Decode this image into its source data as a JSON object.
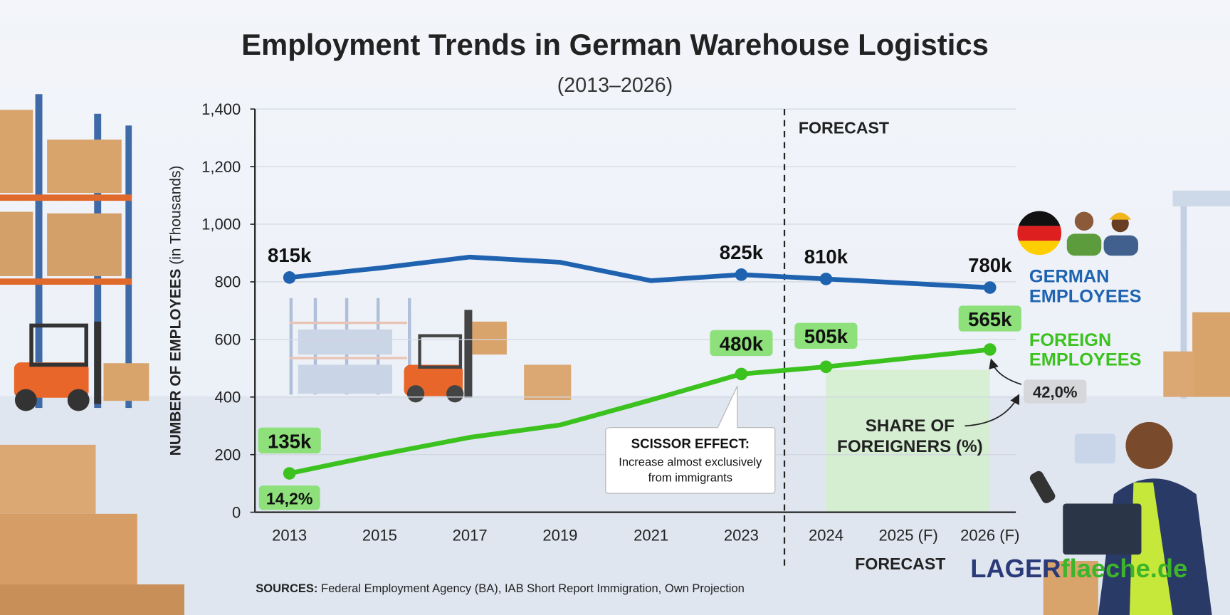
{
  "title": "Employment Trends in German Warehouse Logistics",
  "subtitle": "(2013–2026)",
  "chart_data": {
    "type": "line",
    "title": "Employment Trends in German Warehouse Logistics",
    "subtitle": "(2013–2026)",
    "xlabel": "",
    "ylabel_bold": "NUMBER OF EMPLOYEES",
    "ylabel_rest": " (in Thousands)",
    "ylim": [
      0,
      1400
    ],
    "yticks": [
      0,
      200,
      400,
      600,
      800,
      1000,
      1200,
      1400
    ],
    "ytick_labels": [
      "0",
      "200",
      "400",
      "600",
      "800",
      "1,000",
      "1,200",
      "1,400"
    ],
    "categories": [
      "2013",
      "2015",
      "2017",
      "2019",
      "2021",
      "2023",
      "2024",
      "2025 (F)",
      "2026 (F)"
    ],
    "grid": true,
    "legend_placement": "right",
    "series": [
      {
        "name": "GERMAN EMPLOYEES",
        "legend_lines": [
          "GERMAN",
          "EMPLOYEES"
        ],
        "color": "#1f63b0",
        "values": [
          815,
          848,
          886,
          868,
          804,
          825,
          810,
          null,
          780
        ],
        "labels": [
          {
            "index": 0,
            "text": "815k"
          },
          {
            "index": 5,
            "text": "825k"
          },
          {
            "index": 6,
            "text": "810k"
          },
          {
            "index": 8,
            "text": "780k"
          }
        ]
      },
      {
        "name": "FOREIGN EMPLOYEES",
        "legend_lines": [
          "FOREIGN",
          "EMPLOYEES"
        ],
        "color": "#3cc21e",
        "values": [
          135,
          200,
          260,
          303,
          390,
          480,
          505,
          null,
          565
        ],
        "labels": [
          {
            "index": 0,
            "text": "135k"
          },
          {
            "index": 5,
            "text": "480k"
          },
          {
            "index": 6,
            "text": "505k"
          },
          {
            "index": 8,
            "text": "565k"
          }
        ]
      }
    ],
    "share_of_foreigners": [
      {
        "category": "2013",
        "text": "14,2%"
      },
      {
        "category": "2026 (F)",
        "text": "42,0%"
      }
    ],
    "forecast_start_after": "2023",
    "forecast_label": "FORECAST",
    "forecast_label_bottom": "FORECAST",
    "share_label_lines": [
      "SHARE OF",
      "FOREIGNERS (%)"
    ],
    "callout": {
      "title": "SCISSOR EFFECT:",
      "lines": [
        "Increase almost exclusively",
        "from immigrants"
      ]
    }
  },
  "sources": {
    "label": "SOURCES:",
    "text": " Federal Employment Agency (BA), IAB Short Report Immigration, Own Projection"
  },
  "logo": {
    "part1": "LAGER",
    "part2": "flaeche.de"
  },
  "colors": {
    "german": "#1f63b0",
    "foreign": "#3cc21e",
    "badge": "#8de07a",
    "forecast_shade": "#d4eecb"
  },
  "icons": [
    "german-flag-icon",
    "worker-icon",
    "worker-hardhat-icon",
    "forklift-icon",
    "warehouse-shelf-icon",
    "box-icon",
    "worker-scanner-icon"
  ]
}
